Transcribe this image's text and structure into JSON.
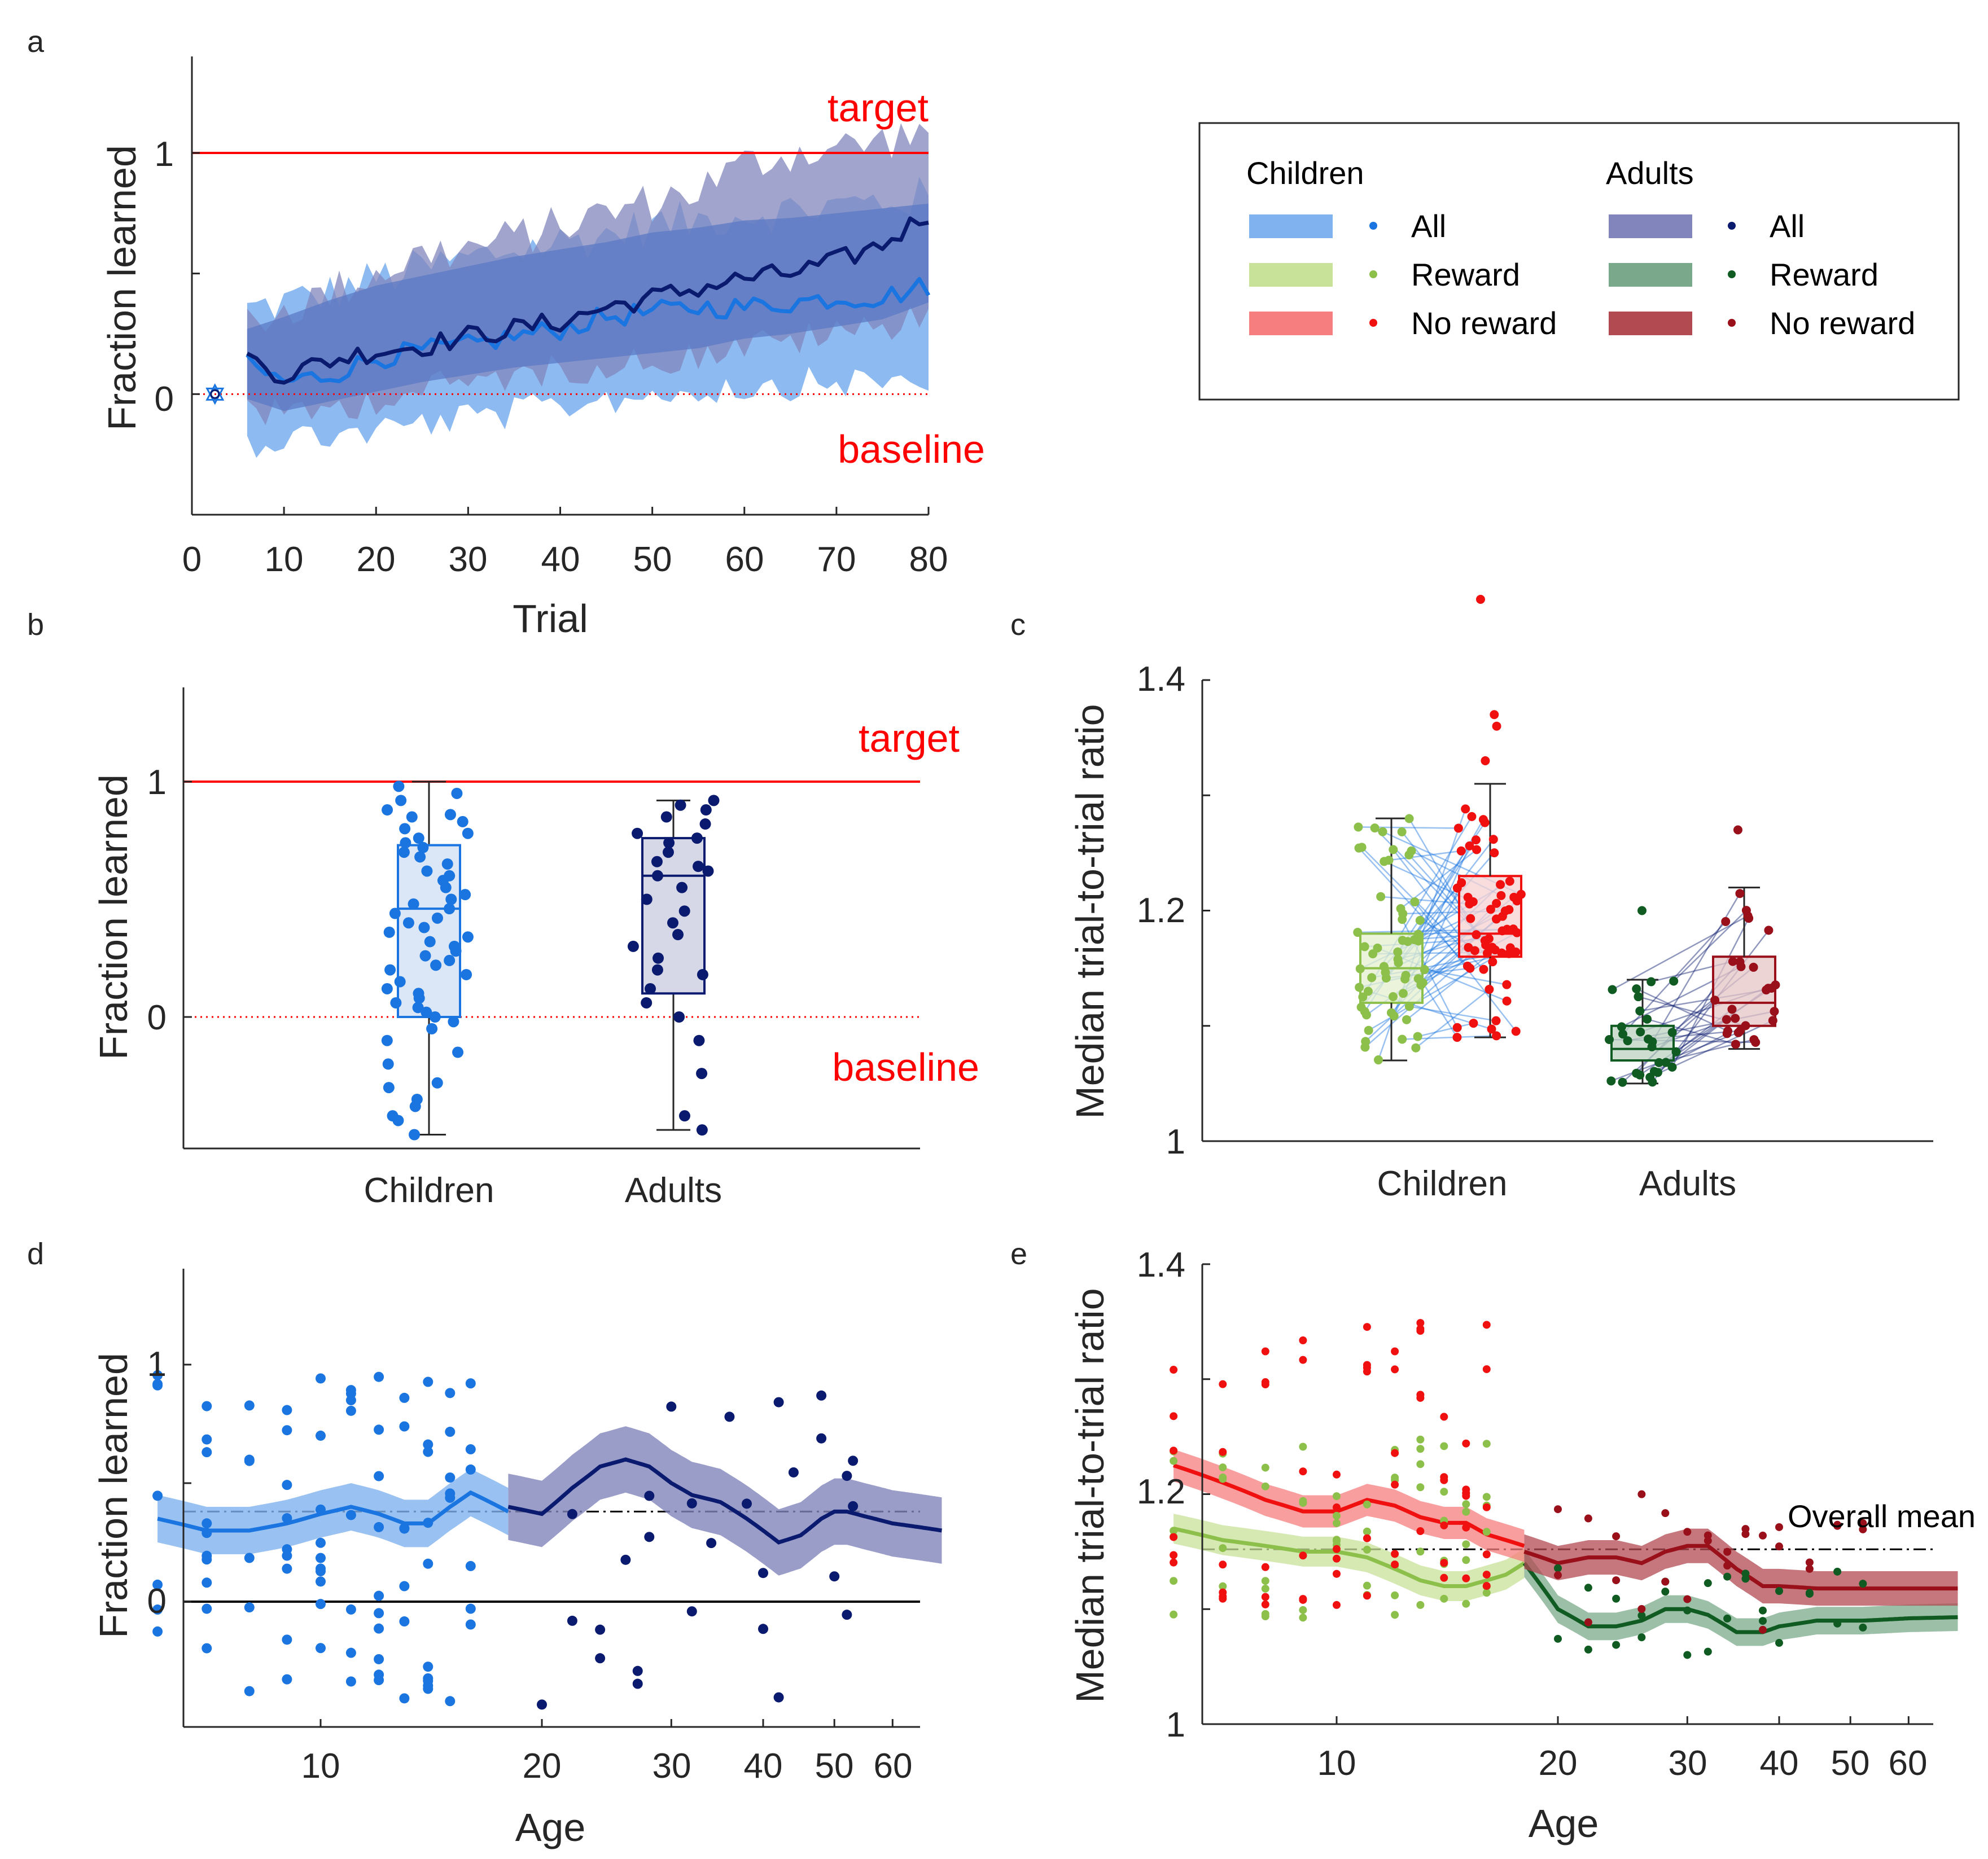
{
  "colors": {
    "child_all": "#1a75e0",
    "child_all_band": "#7fb2ef",
    "adult_all": "#0a1a6e",
    "adult_all_band": "#8285bb",
    "child_reward": "#8dc04b",
    "child_reward_band": "#c8e29a",
    "adult_reward": "#0f5b21",
    "adult_reward_band": "#79a98a",
    "child_noreward": "#f01010",
    "child_noreward_band": "#f77e7e",
    "adult_noreward": "#99101a",
    "adult_noreward_band": "#b24a52",
    "target": "#ff0000"
  },
  "legend": {
    "children_title": "Children",
    "adults_title": "Adults",
    "items": [
      "All",
      "Reward",
      "No reward"
    ]
  },
  "panel_a": {
    "letter": "a",
    "xlabel": "Trial",
    "ylabel": "Fraction learned",
    "xticks": [
      "0",
      "10",
      "20",
      "30",
      "40",
      "50",
      "60",
      "70",
      "80"
    ],
    "yticks": [
      "0",
      "1"
    ],
    "target_label": "target",
    "baseline_label": "baseline"
  },
  "panel_b": {
    "letter": "b",
    "ylabel": "Fraction learned",
    "yticks": [
      "0",
      "1"
    ],
    "categories": [
      "Children",
      "Adults"
    ],
    "target_label": "target",
    "baseline_label": "baseline"
  },
  "panel_c": {
    "letter": "c",
    "ylabel": "Median trial-to-trial ratio",
    "yticks": [
      "1",
      "1.2",
      "1.4"
    ],
    "categories": [
      "Children",
      "Adults"
    ]
  },
  "panel_d": {
    "letter": "d",
    "xlabel": "Age",
    "ylabel": "Fraction learned",
    "xticks": [
      "10",
      "20",
      "30",
      "40",
      "50",
      "60"
    ],
    "yticks": [
      "0",
      "1"
    ]
  },
  "panel_e": {
    "letter": "e",
    "xlabel": "Age",
    "ylabel": "Median trial-to-trial ratio",
    "xticks": [
      "10",
      "20",
      "30",
      "40",
      "50",
      "60"
    ],
    "yticks": [
      "1",
      "1.2",
      "1.4"
    ],
    "overall_mean_label": "Overall mean"
  },
  "chart_data": [
    {
      "panel": "a",
      "type": "line",
      "xlabel": "Trial",
      "ylabel": "Fraction learned",
      "xlim": [
        0,
        80
      ],
      "ylim": [
        -0.5,
        1.4
      ],
      "reference_lines": [
        {
          "y": 1,
          "label": "target"
        },
        {
          "y": 0,
          "label": "baseline",
          "style": "dotted"
        }
      ],
      "x": [
        6,
        10,
        15,
        20,
        25,
        30,
        35,
        40,
        45,
        50,
        55,
        60,
        65,
        70,
        75,
        80
      ],
      "series": [
        {
          "name": "Children All",
          "values": [
            0.12,
            0.05,
            0.08,
            0.15,
            0.18,
            0.2,
            0.24,
            0.27,
            0.32,
            0.34,
            0.36,
            0.36,
            0.38,
            0.4,
            0.4,
            0.45
          ],
          "band_low": [
            -0.2,
            -0.18,
            -0.17,
            -0.15,
            -0.12,
            -0.1,
            -0.08,
            -0.05,
            -0.02,
            0,
            0.02,
            0.03,
            0.04,
            0.05,
            0.05,
            0.06
          ],
          "band_high": [
            0.35,
            0.38,
            0.42,
            0.48,
            0.52,
            0.56,
            0.6,
            0.63,
            0.66,
            0.7,
            0.72,
            0.75,
            0.76,
            0.78,
            0.8,
            0.82
          ]
        },
        {
          "name": "Adults All",
          "values": [
            0.15,
            0.08,
            0.14,
            0.18,
            0.2,
            0.24,
            0.27,
            0.3,
            0.36,
            0.4,
            0.44,
            0.48,
            0.5,
            0.55,
            0.62,
            0.75
          ],
          "band_low": [
            -0.05,
            -0.1,
            -0.06,
            -0.02,
            0.02,
            0.05,
            0.08,
            0.1,
            0.12,
            0.14,
            0.16,
            0.2,
            0.22,
            0.25,
            0.28,
            0.35
          ],
          "band_high": [
            0.3,
            0.35,
            0.42,
            0.5,
            0.58,
            0.6,
            0.65,
            0.7,
            0.75,
            0.8,
            0.85,
            0.95,
            1.0,
            1.02,
            1.05,
            1.1
          ]
        }
      ]
    },
    {
      "panel": "b",
      "type": "box",
      "categories": [
        "Children",
        "Adults"
      ],
      "ylabel": "Fraction learned",
      "ylim": [
        -0.5,
        1.4
      ],
      "boxes": [
        {
          "name": "Children",
          "min": -0.5,
          "q1": 0.0,
          "median": 0.46,
          "q3": 0.73,
          "max": 1.0,
          "points": [
            0.98,
            0.95,
            0.92,
            0.88,
            0.86,
            0.85,
            0.83,
            0.8,
            0.78,
            0.76,
            0.74,
            0.72,
            0.7,
            0.68,
            0.65,
            0.62,
            0.6,
            0.58,
            0.55,
            0.52,
            0.5,
            0.48,
            0.46,
            0.44,
            0.42,
            0.4,
            0.38,
            0.36,
            0.34,
            0.32,
            0.3,
            0.28,
            0.26,
            0.24,
            0.22,
            0.2,
            0.18,
            0.15,
            0.12,
            0.1,
            0.08,
            0.06,
            0.04,
            0.02,
            0.0,
            -0.02,
            -0.05,
            -0.1,
            -0.15,
            -0.2,
            -0.28,
            -0.3,
            -0.35,
            -0.38,
            -0.42,
            -0.44,
            -0.5
          ]
        },
        {
          "name": "Adults",
          "min": -0.48,
          "q1": 0.1,
          "median": 0.6,
          "q3": 0.76,
          "max": 0.92,
          "points": [
            0.92,
            0.9,
            0.88,
            0.85,
            0.82,
            0.78,
            0.76,
            0.74,
            0.7,
            0.66,
            0.64,
            0.62,
            0.6,
            0.55,
            0.5,
            0.45,
            0.4,
            0.35,
            0.3,
            0.25,
            0.2,
            0.18,
            0.12,
            0.06,
            0.0,
            -0.1,
            -0.24,
            -0.42,
            -0.48
          ]
        }
      ]
    },
    {
      "panel": "c",
      "type": "box",
      "categories": [
        "Children",
        "Adults"
      ],
      "ylabel": "Median trial-to-trial ratio",
      "ylim": [
        1,
        1.4
      ],
      "groups": [
        {
          "name": "Children Reward",
          "min": 1.07,
          "q1": 1.12,
          "median": 1.15,
          "q3": 1.18,
          "max": 1.28
        },
        {
          "name": "Children No reward",
          "min": 1.09,
          "q1": 1.16,
          "median": 1.18,
          "q3": 1.23,
          "max": 1.31,
          "outliers": [
            1.33,
            1.36,
            1.37,
            1.47
          ]
        },
        {
          "name": "Adults Reward",
          "min": 1.05,
          "q1": 1.07,
          "median": 1.08,
          "q3": 1.1,
          "max": 1.14,
          "outliers": [
            1.2
          ]
        },
        {
          "name": "Adults No reward",
          "min": 1.08,
          "q1": 1.1,
          "median": 1.12,
          "q3": 1.16,
          "max": 1.22,
          "outliers": [
            1.27
          ]
        }
      ]
    },
    {
      "panel": "d",
      "type": "scatter",
      "xlabel": "Age",
      "ylabel": "Fraction learned",
      "x_scale": "log",
      "xlim": [
        6,
        70
      ],
      "ylim": [
        -0.5,
        1.4
      ],
      "reference_lines": [
        {
          "y": 0,
          "style": "solid"
        },
        {
          "y": 0.38,
          "style": "dashdot"
        }
      ],
      "series": [
        {
          "name": "Children All",
          "trend_x": [
            6,
            7,
            8,
            9,
            10,
            11,
            12,
            13,
            14,
            15,
            16,
            17,
            18
          ],
          "trend": [
            0.35,
            0.3,
            0.3,
            0.33,
            0.37,
            0.4,
            0.37,
            0.33,
            0.33,
            0.4,
            0.46,
            0.42,
            0.38
          ]
        },
        {
          "name": "Adults All",
          "trend_x": [
            18,
            20,
            22,
            24,
            26,
            28,
            30,
            32,
            35,
            38,
            40,
            42,
            45,
            48,
            50,
            52,
            55,
            60,
            70
          ],
          "trend": [
            0.4,
            0.37,
            0.48,
            0.57,
            0.6,
            0.57,
            0.5,
            0.45,
            0.42,
            0.35,
            0.3,
            0.25,
            0.28,
            0.35,
            0.38,
            0.38,
            0.36,
            0.33,
            0.3
          ]
        }
      ]
    },
    {
      "panel": "e",
      "type": "scatter",
      "xlabel": "Age",
      "ylabel": "Median trial-to-trial ratio",
      "x_scale": "log",
      "xlim": [
        6,
        70
      ],
      "ylim": [
        1,
        1.4
      ],
      "reference_lines": [
        {
          "y": 1.152,
          "style": "dashdot",
          "label": "Overall mean"
        }
      ],
      "series": [
        {
          "name": "Children No reward",
          "trend_x": [
            6,
            7,
            8,
            9,
            10,
            11,
            12,
            13,
            14,
            15,
            16,
            17,
            18
          ],
          "trend": [
            1.225,
            1.21,
            1.195,
            1.185,
            1.185,
            1.195,
            1.19,
            1.18,
            1.175,
            1.175,
            1.165,
            1.16,
            1.155
          ]
        },
        {
          "name": "Children Reward",
          "trend_x": [
            6,
            7,
            8,
            9,
            10,
            11,
            12,
            13,
            14,
            15,
            16,
            17,
            18
          ],
          "trend": [
            1.17,
            1.16,
            1.155,
            1.15,
            1.15,
            1.145,
            1.135,
            1.125,
            1.12,
            1.12,
            1.125,
            1.13,
            1.14
          ]
        },
        {
          "name": "Adults No reward",
          "trend_x": [
            18,
            20,
            22,
            24,
            26,
            28,
            30,
            32,
            35,
            38,
            40,
            45,
            50,
            52,
            60,
            70
          ],
          "trend": [
            1.15,
            1.14,
            1.145,
            1.145,
            1.14,
            1.15,
            1.155,
            1.155,
            1.135,
            1.12,
            1.12,
            1.118,
            1.118,
            1.118,
            1.118,
            1.118
          ]
        },
        {
          "name": "Adults Reward",
          "trend_x": [
            18,
            20,
            22,
            24,
            26,
            28,
            30,
            32,
            35,
            38,
            40,
            45,
            50,
            52,
            60,
            70
          ],
          "trend": [
            1.14,
            1.1,
            1.085,
            1.085,
            1.09,
            1.1,
            1.1,
            1.095,
            1.08,
            1.08,
            1.085,
            1.09,
            1.09,
            1.09,
            1.092,
            1.093
          ]
        }
      ]
    }
  ]
}
